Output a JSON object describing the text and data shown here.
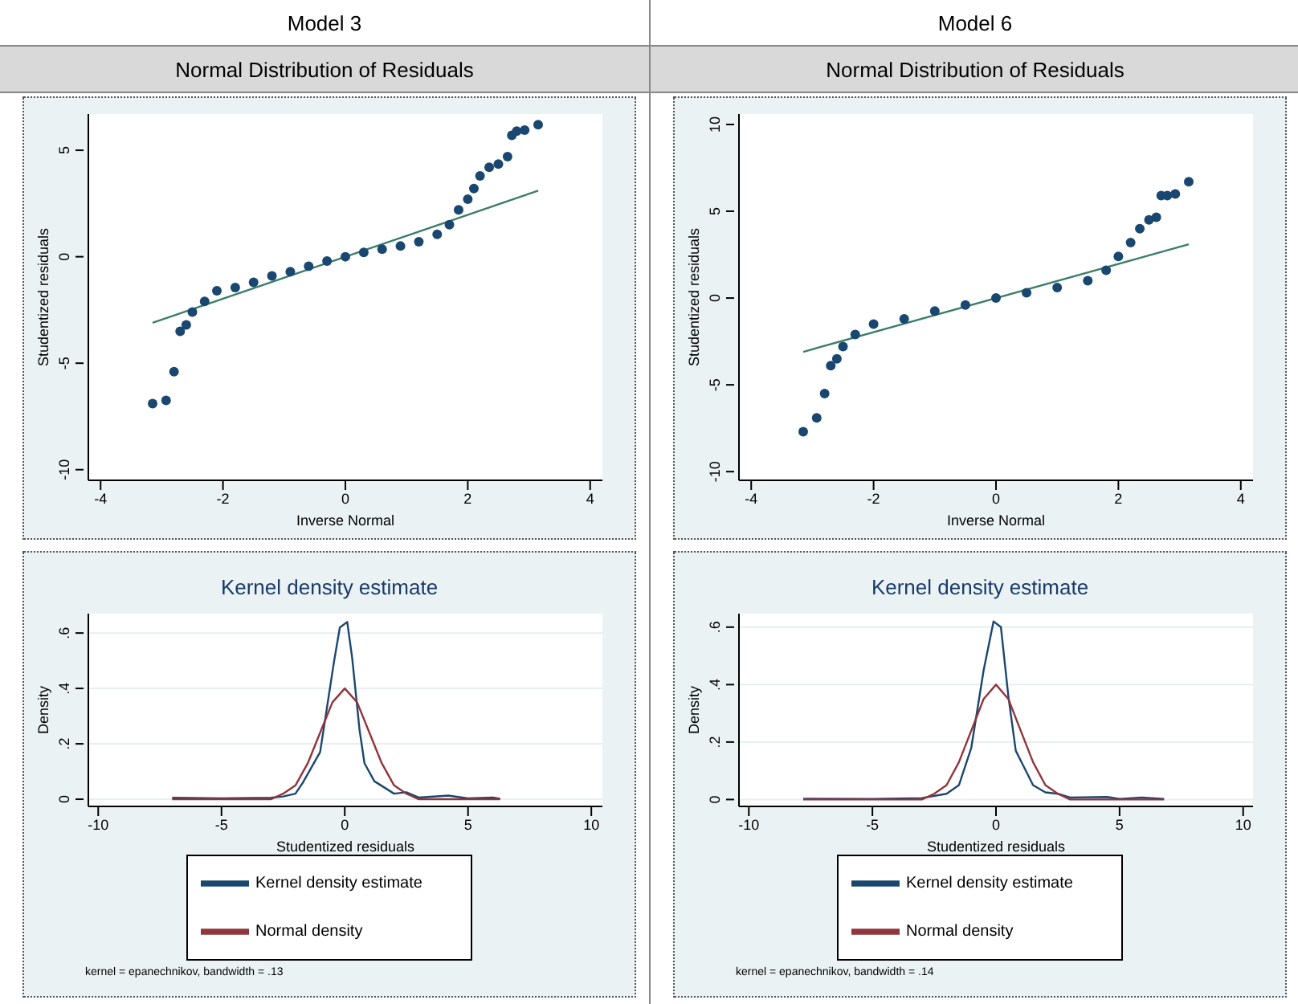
{
  "chart_data": [
    {
      "type": "scatter",
      "title": "Model 3",
      "subtitle": "Normal Distribution of Residuals",
      "xlabel": "Inverse Normal",
      "ylabel": "Studentized residuals",
      "xlim": [
        -4.2,
        4.2
      ],
      "xticks": [
        -4,
        -2,
        0,
        2,
        4
      ],
      "ylim": [
        -10.5,
        6.7
      ],
      "yticks": [
        -10,
        -5,
        0,
        5
      ],
      "grid": false,
      "legend": false,
      "series": [
        {
          "type": "scatter",
          "marker": "circle",
          "color": "#1a476f",
          "x": [
            -3.15,
            -2.93,
            -2.8,
            -2.7,
            -2.6,
            -2.5,
            -2.3,
            -2.1,
            -1.8,
            -1.5,
            -1.2,
            -0.9,
            -0.6,
            -0.3,
            0,
            0.3,
            0.6,
            0.9,
            1.2,
            1.5,
            1.7,
            1.85,
            2.0,
            2.1,
            2.2,
            2.35,
            2.5,
            2.65,
            2.72,
            2.8,
            2.93,
            3.15
          ],
          "values": [
            -6.9,
            -6.75,
            -5.4,
            -3.5,
            -3.2,
            -2.6,
            -2.1,
            -1.6,
            -1.45,
            -1.2,
            -0.9,
            -0.7,
            -0.45,
            -0.2,
            0,
            0.2,
            0.35,
            0.5,
            0.7,
            1.05,
            1.5,
            2.2,
            2.7,
            3.2,
            3.8,
            4.2,
            4.35,
            4.7,
            5.7,
            5.9,
            5.95,
            6.2
          ]
        },
        {
          "type": "line",
          "marker": "none",
          "color": "#3a7d6a",
          "x": [
            -3.15,
            3.15
          ],
          "values": [
            -3.1,
            3.1
          ]
        }
      ]
    },
    {
      "type": "scatter",
      "title": "Model 6",
      "subtitle": "Normal Distribution of Residuals",
      "xlabel": "Inverse Normal",
      "ylabel": "Studentized residuals",
      "xlim": [
        -4.2,
        4.2
      ],
      "xticks": [
        -4,
        -2,
        0,
        2,
        4
      ],
      "ylim": [
        -10.5,
        10.6
      ],
      "yticks": [
        -10,
        -5,
        0,
        5,
        10
      ],
      "grid": false,
      "legend": false,
      "series": [
        {
          "type": "scatter",
          "marker": "circle",
          "color": "#1a476f",
          "x": [
            -3.15,
            -2.93,
            -2.8,
            -2.7,
            -2.6,
            -2.5,
            -2.3,
            -2.0,
            -1.5,
            -1.0,
            -0.5,
            0,
            0.5,
            1.0,
            1.5,
            1.8,
            2.0,
            2.2,
            2.35,
            2.5,
            2.62,
            2.7,
            2.8,
            2.93,
            3.15
          ],
          "values": [
            -7.7,
            -6.9,
            -5.5,
            -3.9,
            -3.5,
            -2.8,
            -2.1,
            -1.5,
            -1.2,
            -0.75,
            -0.4,
            0,
            0.3,
            0.6,
            1.0,
            1.6,
            2.4,
            3.2,
            4.0,
            4.5,
            4.65,
            5.9,
            5.9,
            6.0,
            6.7
          ]
        },
        {
          "type": "line",
          "marker": "none",
          "color": "#3a7d6a",
          "x": [
            -3.15,
            3.15
          ],
          "values": [
            -3.1,
            3.1
          ]
        }
      ]
    },
    {
      "type": "line",
      "title": "Kernel density estimate",
      "xlabel": "Studentized residuals",
      "ylabel": "Density",
      "xlim": [
        -10.4,
        10.45
      ],
      "xticks": [
        -10,
        -5,
        0,
        5,
        10
      ],
      "ylim": [
        -0.026,
        0.67
      ],
      "yticks": [
        0,
        {
          "value": 0.2,
          "label": ".2"
        },
        {
          "value": 0.4,
          "label": ".4"
        },
        {
          "value": 0.6,
          "label": ".6"
        }
      ],
      "grid": "y",
      "legend": "bottom",
      "annotations": [
        "kernel = epanechnikov, bandwidth = .13"
      ],
      "series": [
        {
          "name": "Kernel density estimate",
          "color": "#1a476f",
          "x": [
            -7,
            -5,
            -3,
            -2.5,
            -2,
            -1.7,
            -1,
            -0.43,
            -0.2,
            0.1,
            0.3,
            0.6,
            0.8,
            1.2,
            2,
            2.5,
            3,
            4.2,
            5,
            6,
            6.3
          ],
          "values": [
            0.005,
            0.003,
            0.005,
            0.01,
            0.02,
            0.06,
            0.17,
            0.5,
            0.62,
            0.64,
            0.51,
            0.25,
            0.13,
            0.065,
            0.02,
            0.025,
            0.006,
            0.013,
            0.003,
            0.006,
            0.002
          ]
        },
        {
          "name": "Normal density",
          "color": "#90353b",
          "x": [
            -7,
            -3,
            -2.5,
            -2,
            -1.5,
            -1,
            -0.5,
            0,
            0.5,
            1,
            1.5,
            2,
            2.5,
            3,
            6.3
          ],
          "values": [
            0,
            0,
            0.02,
            0.05,
            0.13,
            0.24,
            0.35,
            0.4,
            0.35,
            0.24,
            0.13,
            0.05,
            0.02,
            0,
            0
          ]
        }
      ]
    },
    {
      "type": "line",
      "title": "Kernel density estimate",
      "xlabel": "Studentized residuals",
      "ylabel": "Density",
      "xlim": [
        -10.4,
        10.4
      ],
      "xticks": [
        -10,
        -5,
        0,
        5,
        10
      ],
      "ylim": [
        -0.024,
        0.647
      ],
      "yticks": [
        0,
        {
          "value": 0.2,
          "label": ".2"
        },
        {
          "value": 0.4,
          "label": ".4"
        },
        {
          "value": 0.6,
          "label": ".6"
        }
      ],
      "grid": "y",
      "legend": "bottom",
      "annotations": [
        "kernel = epanechnikov, bandwidth = .14"
      ],
      "series": [
        {
          "name": "Kernel density estimate",
          "color": "#1a476f",
          "x": [
            -7.8,
            -5,
            -3,
            -2,
            -1.5,
            -1,
            -0.5,
            -0.1,
            0.2,
            0.5,
            0.8,
            1.5,
            2,
            2.5,
            3,
            4.5,
            5,
            5.9,
            6.8
          ],
          "values": [
            0.003,
            0.002,
            0.005,
            0.02,
            0.05,
            0.18,
            0.45,
            0.62,
            0.6,
            0.36,
            0.17,
            0.05,
            0.025,
            0.02,
            0.007,
            0.009,
            0.002,
            0.007,
            0.002
          ]
        },
        {
          "name": "Normal density",
          "color": "#90353b",
          "x": [
            -7.8,
            -3,
            -2.5,
            -2,
            -1.5,
            -1,
            -0.5,
            0,
            0.5,
            1,
            1.5,
            2,
            2.5,
            3,
            6.8
          ],
          "values": [
            0,
            0,
            0.02,
            0.05,
            0.13,
            0.24,
            0.35,
            0.4,
            0.35,
            0.24,
            0.13,
            0.05,
            0.02,
            0,
            0
          ]
        }
      ]
    }
  ]
}
